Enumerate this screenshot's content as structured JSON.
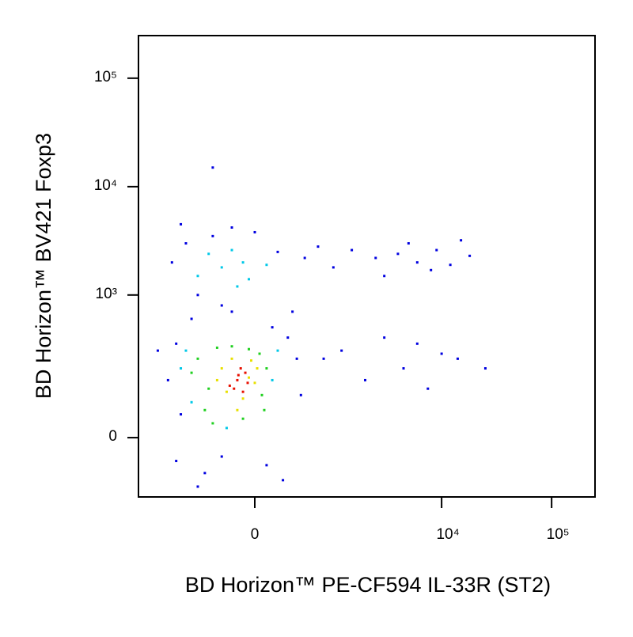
{
  "chart_data": {
    "type": "scatter",
    "x_label": "BD Horizon™ PE-CF594 IL-33R (ST2)",
    "y_label": "BD Horizon™ BV421 Foxp3",
    "xscale": "biexponential",
    "yscale": "biexponential",
    "xlim": [
      -2270,
      248000
    ],
    "ylim": [
      -157,
      247000
    ],
    "xticks": [
      0,
      {
        "value": 10000,
        "label": "10⁴"
      },
      {
        "value": 100000,
        "label": "10⁵"
      }
    ],
    "yticks": [
      0,
      {
        "value": 1000,
        "label": "10³"
      },
      {
        "value": 10000,
        "label": "10⁴"
      },
      {
        "value": 100000,
        "label": "10⁵"
      }
    ],
    "series": [
      {
        "color": "#0000e0",
        "x": [
          -1200,
          -1000,
          -900,
          300,
          400,
          450,
          -1100,
          -800,
          -600,
          -400,
          -200,
          0,
          200,
          350,
          -700,
          -300,
          500,
          -1000,
          -500,
          100,
          700,
          1000,
          1500,
          2500,
          3000,
          4000,
          5000,
          6000,
          8000,
          9000,
          12000,
          15000,
          18000,
          800,
          1200,
          2000,
          3000,
          4500,
          6000,
          7500,
          10000,
          14000,
          25000,
          -1500,
          -600,
          -300,
          250,
          -900,
          -200,
          150,
          -400
        ],
        "values": [
          150,
          350,
          50,
          400,
          250,
          100,
          2000,
          3000,
          1000,
          3500,
          4200,
          3800,
          2500,
          700,
          600,
          800,
          2200,
          -50,
          -80,
          -60,
          2800,
          1800,
          2600,
          2200,
          1500,
          2400,
          3000,
          2000,
          1700,
          2600,
          1900,
          3200,
          2300,
          250,
          300,
          150,
          400,
          200,
          350,
          120,
          280,
          250,
          200,
          300,
          -120,
          -40,
          -100,
          4500,
          700,
          500,
          15000
        ]
      },
      {
        "color": "#00c8e8",
        "x": [
          -800,
          -700,
          150,
          200,
          -300,
          -600,
          -100,
          100,
          -450,
          -200,
          -900,
          -250,
          -150,
          -50
        ],
        "values": [
          300,
          80,
          150,
          300,
          1800,
          1500,
          2000,
          1900,
          2400,
          2600,
          200,
          20,
          1200,
          1400
        ]
      },
      {
        "color": "#20d020",
        "x": [
          -450,
          -600,
          60,
          100,
          -500,
          -350,
          -200,
          -50,
          40,
          -700,
          -400,
          -100,
          80
        ],
        "values": [
          120,
          250,
          100,
          200,
          60,
          320,
          330,
          310,
          280,
          180,
          30,
          40,
          60
        ]
      },
      {
        "color": "#e8e000",
        "x": [
          -300,
          -50,
          -250,
          0,
          -200,
          -100,
          20,
          -350,
          -150,
          -30
        ],
        "values": [
          200,
          160,
          110,
          140,
          250,
          90,
          200,
          150,
          60,
          240
        ]
      },
      {
        "color": "#e81000",
        "x": [
          -150,
          -80,
          -220,
          -120,
          -60,
          -180,
          -100,
          -140
        ],
        "values": [
          150,
          180,
          130,
          200,
          140,
          120,
          110,
          170
        ]
      }
    ]
  }
}
